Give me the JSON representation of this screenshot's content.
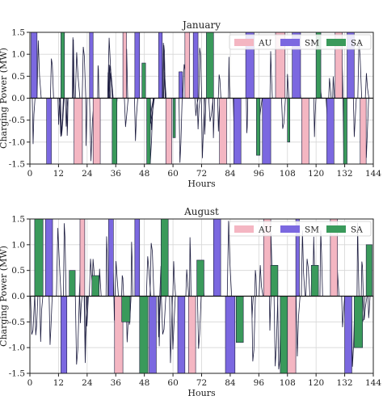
{
  "chart_data": [
    {
      "type": "area",
      "title": "January",
      "xlabel": "Hours",
      "ylabel": "Charging Power (MW)",
      "xlim": [
        0,
        144
      ],
      "ylim": [
        -1.5,
        1.5
      ],
      "xticks": [
        0,
        12,
        24,
        36,
        48,
        60,
        72,
        84,
        96,
        108,
        120,
        132,
        144
      ],
      "yticks": [
        -1.5,
        -1.0,
        -0.5,
        0.0,
        0.5,
        1.0,
        1.5
      ],
      "grid": true,
      "legend_position": "top-right",
      "series": [
        {
          "name": "AU",
          "color": "#f4b6c2",
          "intervals": [
            {
              "x0": 18.5,
              "x1": 22.0,
              "v": -1.5
            },
            {
              "x0": 26.5,
              "x1": 29.5,
              "v": -1.5
            },
            {
              "x0": 39.0,
              "x1": 40.5,
              "v": 1.5
            },
            {
              "x0": 57.0,
              "x1": 59.5,
              "v": -1.5
            },
            {
              "x0": 65.0,
              "x1": 67.0,
              "v": 1.5
            },
            {
              "x0": 79.5,
              "x1": 82.5,
              "v": -1.5
            },
            {
              "x0": 103.0,
              "x1": 107.0,
              "v": 1.5
            },
            {
              "x0": 114.0,
              "x1": 117.0,
              "v": -1.5
            },
            {
              "x0": 128.0,
              "x1": 131.0,
              "v": 1.5
            },
            {
              "x0": 138.5,
              "x1": 141.0,
              "v": -1.5
            }
          ]
        },
        {
          "name": "SM",
          "color": "#7b68e0",
          "intervals": [
            {
              "x0": 0.5,
              "x1": 3.0,
              "v": 1.5
            },
            {
              "x0": 7.0,
              "x1": 9.0,
              "v": -1.5
            },
            {
              "x0": 25.0,
              "x1": 26.5,
              "v": 1.5
            },
            {
              "x0": 44.0,
              "x1": 46.0,
              "v": 1.5
            },
            {
              "x0": 54.0,
              "x1": 55.5,
              "v": 1.5
            },
            {
              "x0": 62.5,
              "x1": 64.0,
              "v": 0.6
            },
            {
              "x0": 68.5,
              "x1": 70.5,
              "v": 1.5
            },
            {
              "x0": 85.5,
              "x1": 88.5,
              "v": -1.5
            },
            {
              "x0": 90.5,
              "x1": 94.0,
              "v": 1.5
            },
            {
              "x0": 97.5,
              "x1": 101.0,
              "v": -1.5
            },
            {
              "x0": 110.0,
              "x1": 113.5,
              "v": 1.5
            },
            {
              "x0": 124.5,
              "x1": 127.5,
              "v": -1.5
            },
            {
              "x0": 133.0,
              "x1": 136.0,
              "v": 1.5
            }
          ]
        },
        {
          "name": "SA",
          "color": "#3a9a5b",
          "intervals": [
            {
              "x0": 13.0,
              "x1": 14.5,
              "v": 1.5
            },
            {
              "x0": 34.5,
              "x1": 36.5,
              "v": -1.5
            },
            {
              "x0": 47.0,
              "x1": 48.5,
              "v": 0.8
            },
            {
              "x0": 49.0,
              "x1": 50.5,
              "v": -1.5
            },
            {
              "x0": 60.0,
              "x1": 61.0,
              "v": -0.9
            },
            {
              "x0": 74.0,
              "x1": 77.0,
              "v": 1.5
            },
            {
              "x0": 95.0,
              "x1": 96.5,
              "v": -1.3
            },
            {
              "x0": 108.0,
              "x1": 109.0,
              "v": -1.0
            },
            {
              "x0": 120.0,
              "x1": 122.0,
              "v": 1.5
            },
            {
              "x0": 131.5,
              "x1": 133.0,
              "v": -1.5
            }
          ]
        }
      ]
    },
    {
      "type": "area",
      "title": "August",
      "xlabel": "Hours",
      "ylabel": "Charging Power (MW)",
      "xlim": [
        0,
        144
      ],
      "ylim": [
        -1.5,
        1.5
      ],
      "xticks": [
        0,
        12,
        24,
        36,
        48,
        60,
        72,
        84,
        96,
        108,
        120,
        132,
        144
      ],
      "yticks": [
        -1.5,
        -1.0,
        -0.5,
        0.0,
        0.5,
        1.0,
        1.5
      ],
      "grid": true,
      "legend_position": "top-right",
      "series": [
        {
          "name": "AU",
          "color": "#f4b6c2",
          "intervals": [
            {
              "x0": 21.0,
              "x1": 23.0,
              "v": 1.5
            },
            {
              "x0": 35.5,
              "x1": 39.0,
              "v": -1.5
            },
            {
              "x0": 66.5,
              "x1": 69.5,
              "v": -1.5
            },
            {
              "x0": 98.0,
              "x1": 101.0,
              "v": 1.5
            },
            {
              "x0": 108.0,
              "x1": 111.5,
              "v": -1.5
            },
            {
              "x0": 126.0,
              "x1": 129.0,
              "v": 1.5
            }
          ]
        },
        {
          "name": "SM",
          "color": "#7b68e0",
          "intervals": [
            {
              "x0": 6.5,
              "x1": 9.5,
              "v": 1.5
            },
            {
              "x0": 13.0,
              "x1": 15.5,
              "v": -1.5
            },
            {
              "x0": 33.0,
              "x1": 35.0,
              "v": 1.5
            },
            {
              "x0": 44.0,
              "x1": 46.0,
              "v": 1.5
            },
            {
              "x0": 50.0,
              "x1": 53.0,
              "v": -1.5
            },
            {
              "x0": 62.0,
              "x1": 65.0,
              "v": -1.5
            },
            {
              "x0": 77.0,
              "x1": 80.0,
              "v": 1.5
            },
            {
              "x0": 82.0,
              "x1": 86.0,
              "v": -1.5
            },
            {
              "x0": 111.5,
              "x1": 113.0,
              "v": 1.5
            },
            {
              "x0": 132.0,
              "x1": 135.0,
              "v": -1.5
            }
          ]
        },
        {
          "name": "SA",
          "color": "#3a9a5b",
          "intervals": [
            {
              "x0": 2.0,
              "x1": 5.5,
              "v": 1.5
            },
            {
              "x0": 16.5,
              "x1": 19.0,
              "v": 0.5
            },
            {
              "x0": 26.0,
              "x1": 29.0,
              "v": 0.4
            },
            {
              "x0": 38.5,
              "x1": 42.0,
              "v": -0.5
            },
            {
              "x0": 46.0,
              "x1": 49.5,
              "v": -1.5
            },
            {
              "x0": 55.0,
              "x1": 58.0,
              "v": 1.5
            },
            {
              "x0": 70.0,
              "x1": 73.0,
              "v": 0.7
            },
            {
              "x0": 86.5,
              "x1": 89.5,
              "v": -0.9
            },
            {
              "x0": 101.0,
              "x1": 104.0,
              "v": 0.6
            },
            {
              "x0": 105.0,
              "x1": 108.0,
              "v": -1.5
            },
            {
              "x0": 118.0,
              "x1": 121.0,
              "v": 0.6
            },
            {
              "x0": 136.0,
              "x1": 139.5,
              "v": -1.0
            },
            {
              "x0": 141.0,
              "x1": 143.5,
              "v": 1.0
            }
          ]
        }
      ]
    }
  ]
}
